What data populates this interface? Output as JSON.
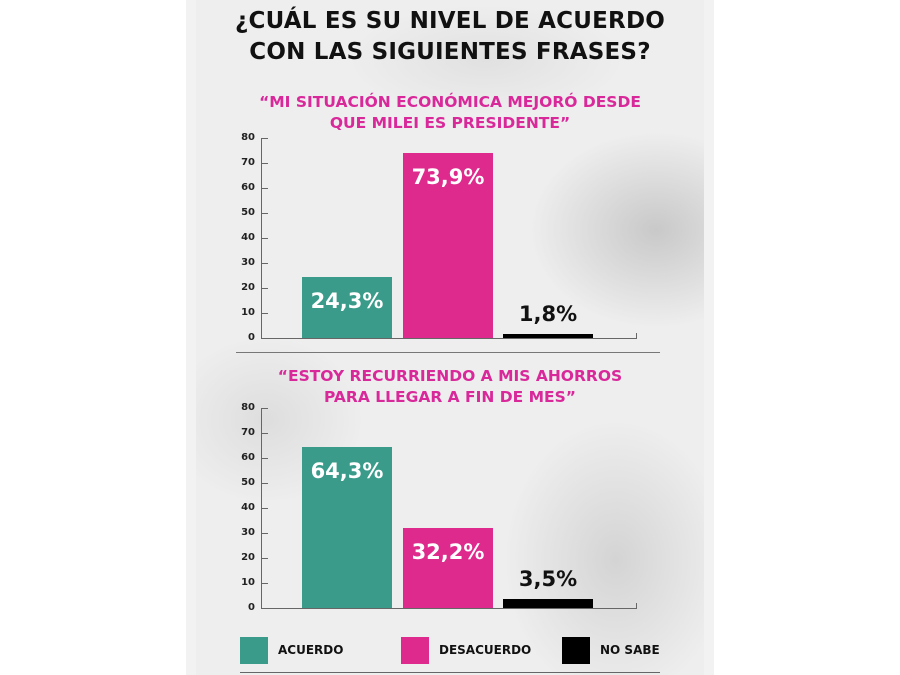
{
  "title": {
    "line1": "¿CUÁL ES SU NIVEL DE ACUERDO",
    "line2": "CON LAS SIGUIENTES FRASES?"
  },
  "colors": {
    "acuerdo": "#3a9b8a",
    "desacuerdo": "#dd2a8c",
    "no_sabe": "#000000",
    "subtitle": "#d8289a"
  },
  "charts": [
    {
      "subtitle_line1": "“MI SITUACIÓN ECONÓMICA MEJORÓ DESDE",
      "subtitle_line2": "QUE MILEI ES PRESIDENTE”",
      "labels": [
        "24,3%",
        "73,9%",
        "1,8%"
      ]
    },
    {
      "subtitle_line1": "“ESTOY RECURRIENDO A MIS AHORROS",
      "subtitle_line2": "PARA LLEGAR A FIN DE MES”",
      "labels": [
        "64,3%",
        "32,2%",
        "3,5%"
      ]
    }
  ],
  "yticks": [
    "80",
    "70",
    "60",
    "50",
    "40",
    "30",
    "20",
    "10",
    "0"
  ],
  "legend": [
    {
      "label": "ACUERDO",
      "color": "#3a9b8a"
    },
    {
      "label": "DESACUERDO",
      "color": "#dd2a8c"
    },
    {
      "label": "NO SABE",
      "color": "#000000"
    }
  ],
  "chart_data": [
    {
      "type": "bar",
      "title": "“MI SITUACIÓN ECONÓMICA MEJORÓ DESDE QUE MILEI ES PRESIDENTE”",
      "categories": [
        "ACUERDO",
        "DESACUERDO",
        "NO SABE"
      ],
      "values": [
        24.3,
        73.9,
        1.8
      ],
      "value_labels": [
        "24,3%",
        "73,9%",
        "1,8%"
      ],
      "colors": [
        "#3a9b8a",
        "#dd2a8c",
        "#000000"
      ],
      "xlabel": "",
      "ylabel": "",
      "ylim": [
        0,
        80
      ],
      "yticks": [
        0,
        10,
        20,
        30,
        40,
        50,
        60,
        70,
        80
      ],
      "grid": false,
      "legend_position": "bottom"
    },
    {
      "type": "bar",
      "title": "“ESTOY RECURRIENDO A MIS AHORROS PARA LLEGAR A FIN DE MES”",
      "categories": [
        "ACUERDO",
        "DESACUERDO",
        "NO SABE"
      ],
      "values": [
        64.3,
        32.2,
        3.5
      ],
      "value_labels": [
        "64,3%",
        "32,2%",
        "3,5%"
      ],
      "colors": [
        "#3a9b8a",
        "#dd2a8c",
        "#000000"
      ],
      "xlabel": "",
      "ylabel": "",
      "ylim": [
        0,
        80
      ],
      "yticks": [
        0,
        10,
        20,
        30,
        40,
        50,
        60,
        70,
        80
      ],
      "grid": false,
      "legend_position": "bottom"
    }
  ]
}
